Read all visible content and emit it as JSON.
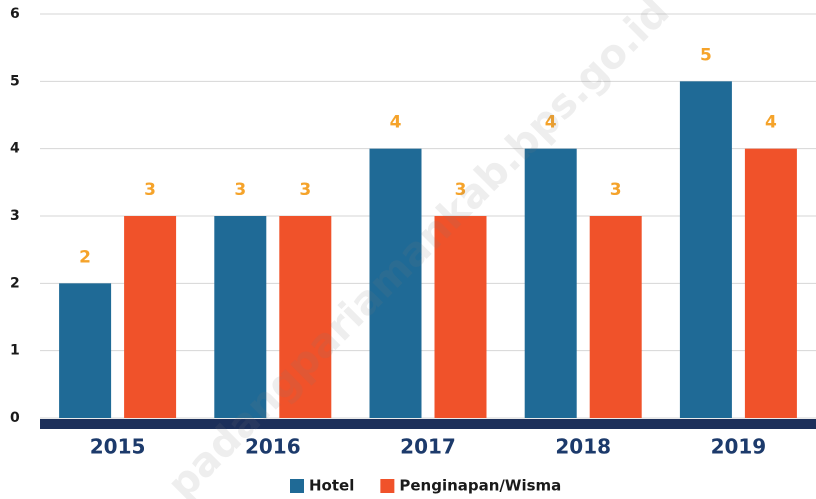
{
  "chart_data": {
    "type": "bar",
    "categories": [
      "2015",
      "2016",
      "2017",
      "2018",
      "2019"
    ],
    "series": [
      {
        "name": "Hotel",
        "color": "#1f6a96",
        "values": [
          2,
          3,
          4,
          4,
          5
        ]
      },
      {
        "name": "Penginapan/Wisma",
        "color": "#f0522a",
        "values": [
          3,
          3,
          3,
          3,
          4
        ]
      }
    ],
    "ylim": [
      0,
      6
    ],
    "yticks": [
      0,
      1,
      2,
      3,
      4,
      5,
      6
    ],
    "grid": true,
    "legend": "bottom",
    "watermark": "padangpariamankab.bps.go.id"
  }
}
